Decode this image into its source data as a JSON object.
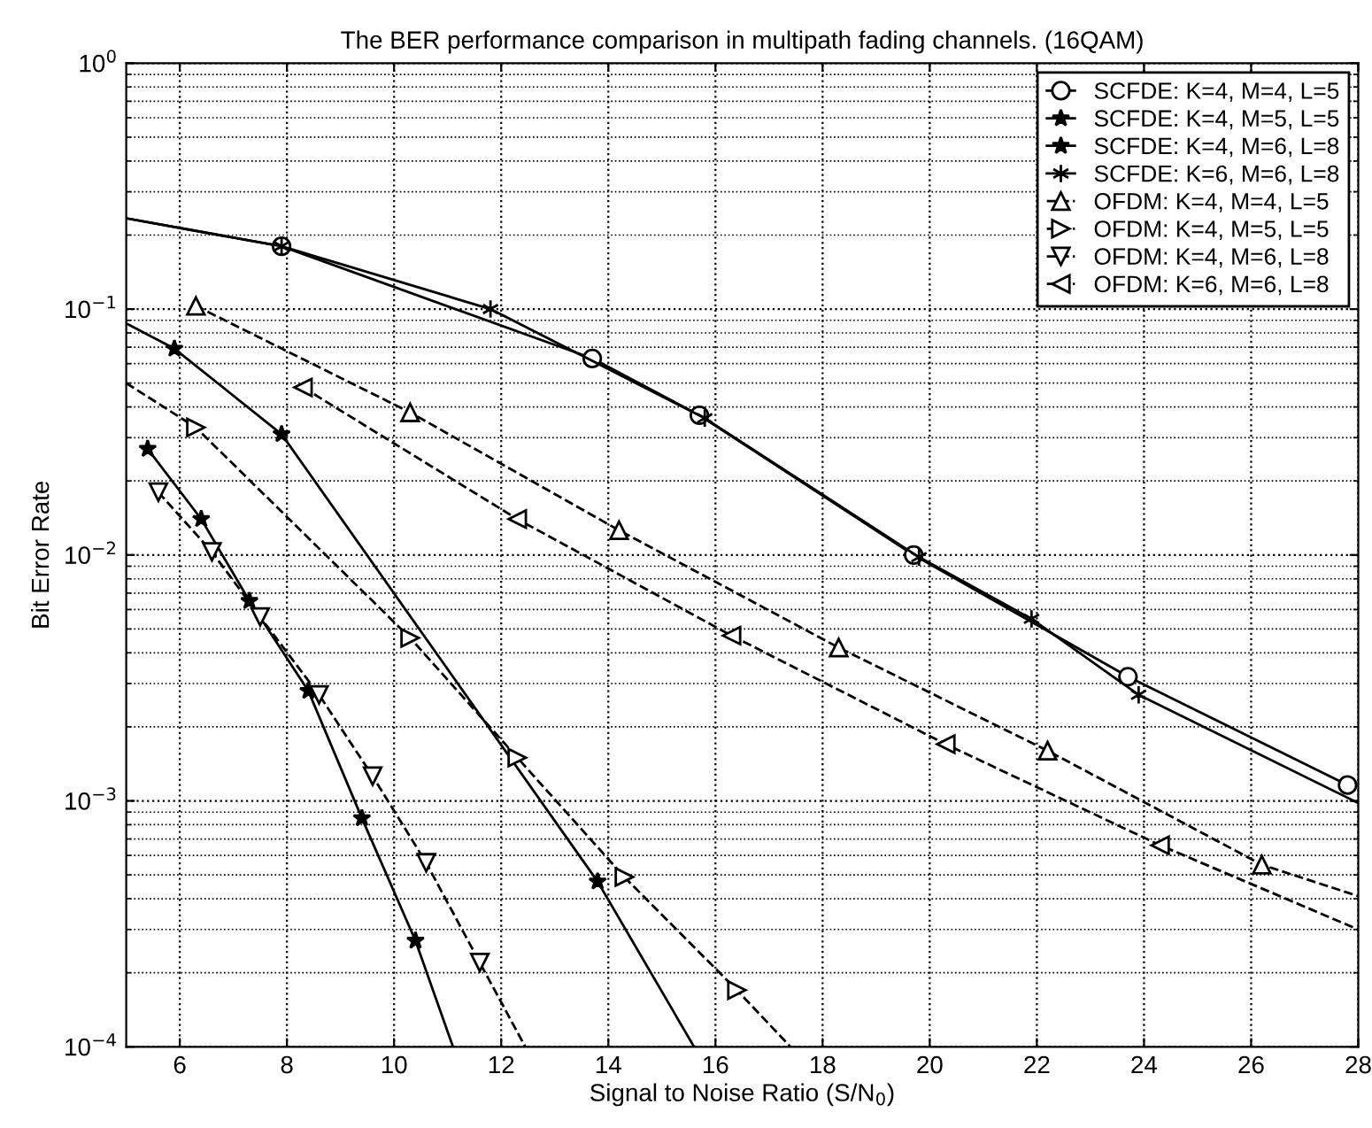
{
  "chart_data": {
    "type": "line",
    "title": "The BER performance comparison in multipath fading channels. (16QAM)",
    "xlabel": "Signal to Noise Ratio (S/N$_{0}$)",
    "ylabel": "Bit Error Rate",
    "log": "y",
    "grid": true,
    "legend": "top right",
    "xlim": [
      5,
      28
    ],
    "xticks": [
      6,
      8,
      10,
      12,
      14,
      16,
      18,
      20,
      22,
      24,
      26,
      28
    ],
    "ylim": [
      0.0001,
      1
    ],
    "yticks": [
      {
        "value": 0.0001,
        "label": "10$^{−4}$"
      },
      {
        "value": 0.001,
        "label": "10$^{−3}$"
      },
      {
        "value": 0.01,
        "label": "10$^{−2}$"
      },
      {
        "value": 0.1,
        "label": "10$^{−1}$"
      },
      {
        "value": 1,
        "label": "10$^{0}$"
      }
    ],
    "series": [
      {
        "name": "SCFDE: K=4, M=4, L=5",
        "color": "#000000",
        "marker": "circle",
        "line_style": "solid",
        "x": [
          5,
          7.9,
          13.7,
          15.7,
          19.7,
          23.7,
          27.8
        ],
        "values": [
          0.234,
          0.18,
          0.063,
          0.037,
          0.01,
          0.0032,
          0.00116
        ]
      },
      {
        "name": "SCFDE: K=4, M=5, L=5",
        "color": "#000000",
        "marker": "star",
        "line_style": "solid",
        "x": [
          5,
          5.9,
          7.9,
          13.8,
          15.6
        ],
        "values": [
          0.0875,
          0.069,
          0.031,
          0.00047,
          0.0001
        ]
      },
      {
        "name": "SCFDE: K=4, M=6, L=8",
        "color": "#000000",
        "marker": "star",
        "line_style": "solid",
        "x": [
          5.4,
          6.4,
          7.3,
          8.4,
          9.4,
          10.4,
          11.1
        ],
        "values": [
          0.027,
          0.014,
          0.0065,
          0.0028,
          0.00085,
          0.00027,
          0.0001
        ]
      },
      {
        "name": "SCFDE: K=6, M=6, L=8",
        "color": "#000000",
        "marker": "cross",
        "line_style": "solid",
        "x": [
          5,
          7.9,
          11.8,
          15.8,
          19.8,
          21.9,
          23.9,
          28
        ],
        "values": [
          0.234,
          0.18,
          0.1,
          0.036,
          0.0098,
          0.0055,
          0.0027,
          0.00098
        ]
      },
      {
        "name": "OFDM: K=4, M=4, L=5",
        "color": "#000000",
        "marker": "triangle",
        "line_style": "dashed",
        "x": [
          6.3,
          10.3,
          14.2,
          18.3,
          22.2,
          26.2,
          28
        ],
        "values": [
          0.103,
          0.038,
          0.0126,
          0.0042,
          0.0016,
          0.00055,
          0.00041
        ]
      },
      {
        "name": "OFDM: K=4, M=5, L=5",
        "color": "#000000",
        "marker": "triangle_right",
        "line_style": "dashed",
        "x": [
          5,
          6.3,
          10.3,
          12.3,
          14.3,
          16.4,
          17.4
        ],
        "values": [
          0.05,
          0.033,
          0.0046,
          0.0015,
          0.00049,
          0.00017,
          0.0001
        ]
      },
      {
        "name": "OFDM: K=4, M=6, L=8",
        "color": "#000000",
        "marker": "triangle_down",
        "line_style": "dashed",
        "x": [
          5.6,
          6.6,
          7.5,
          8.6,
          9.6,
          10.6,
          11.6,
          12.45
        ],
        "values": [
          0.018,
          0.0103,
          0.0056,
          0.0027,
          0.00126,
          0.00056,
          0.00022,
          0.0001
        ]
      },
      {
        "name": "OFDM: K=6, M=6, L=8",
        "color": "#000000",
        "marker": "triangle_left",
        "line_style": "dashed",
        "x": [
          8.3,
          12.3,
          16.3,
          20.3,
          24.3,
          28
        ],
        "values": [
          0.048,
          0.014,
          0.0047,
          0.0017,
          0.00066,
          0.0003
        ]
      }
    ]
  }
}
